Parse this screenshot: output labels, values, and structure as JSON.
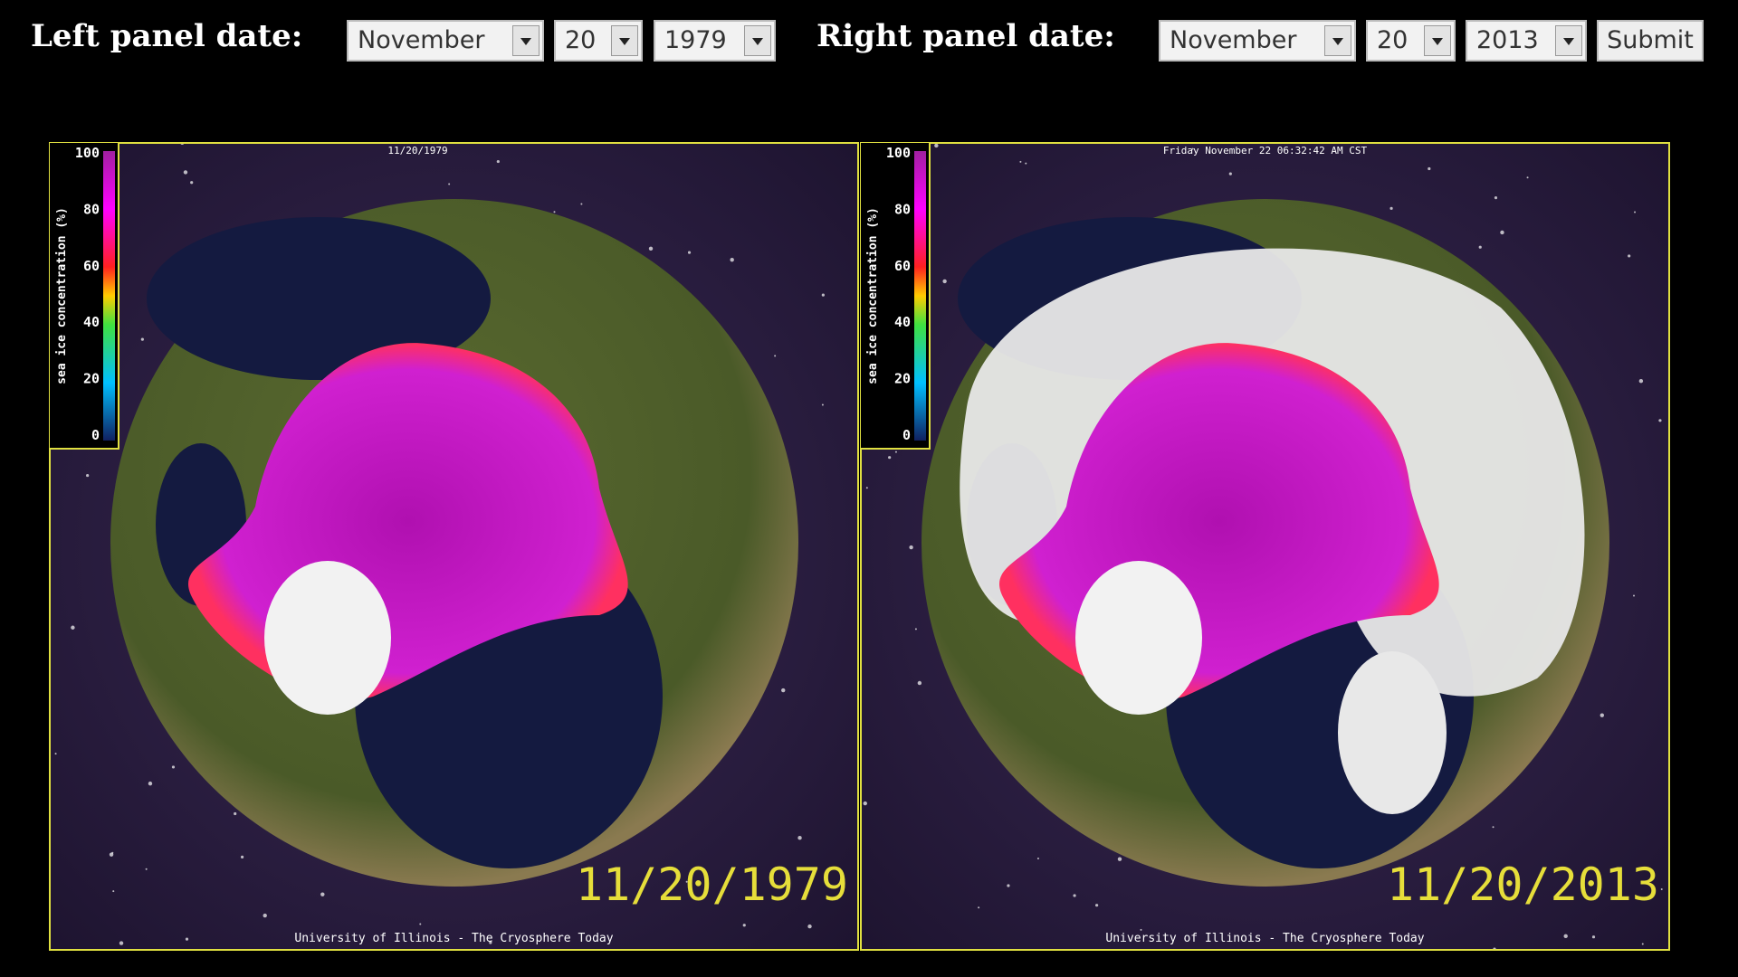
{
  "header": {
    "left_label": "Left panel date:",
    "left_date": {
      "month": "November",
      "day": "20",
      "year": "1979"
    },
    "right_label": "Right panel date:",
    "right_date": {
      "month": "November",
      "day": "20",
      "year": "2013"
    },
    "submit": "Submit"
  },
  "panels": [
    {
      "top_caption": "11/20/1979",
      "colorbar_label": "sea ice concentration (%)",
      "colorbar_ticks": [
        100,
        80,
        60,
        40,
        20,
        0
      ],
      "date_stamp": "11/20/1979",
      "footer": "University of Illinois - The Cryosphere Today"
    },
    {
      "top_caption": "Friday November 22 06:32:42 AM CST",
      "colorbar_label": "sea ice concentration (%)",
      "colorbar_ticks": [
        100,
        80,
        60,
        40,
        20,
        0
      ],
      "date_stamp": "11/20/2013",
      "footer": "University of Illinois - The Cryosphere Today"
    }
  ]
}
